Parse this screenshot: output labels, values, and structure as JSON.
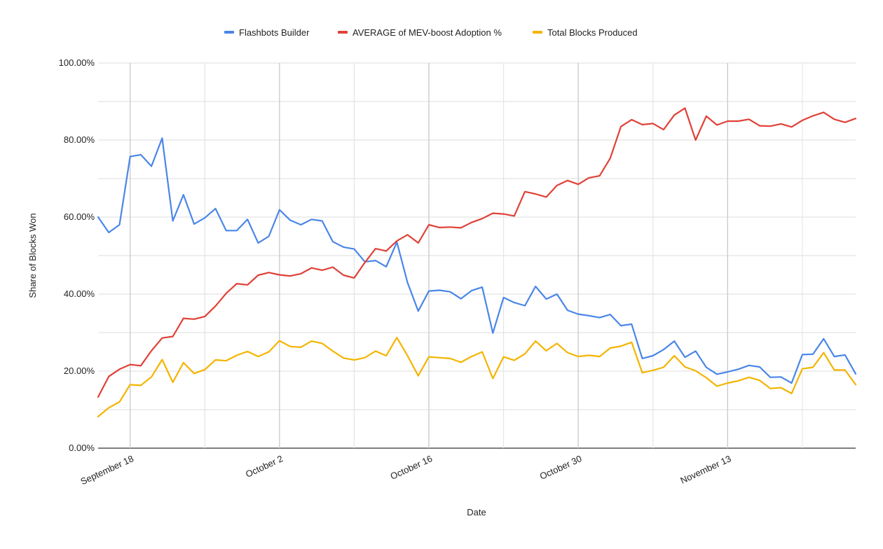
{
  "chart_data": {
    "type": "line",
    "title": "",
    "xlabel": "Date",
    "ylabel": "Share of Blocks Won",
    "ylim": [
      0,
      100
    ],
    "y_ticks": [
      "0.00%",
      "20.00%",
      "40.00%",
      "60.00%",
      "80.00%",
      "100.00%"
    ],
    "x_ticks": [
      {
        "label": "September 18",
        "day": 3
      },
      {
        "label": "October 2",
        "day": 17
      },
      {
        "label": "October 16",
        "day": 31
      },
      {
        "label": "October 30",
        "day": 45
      },
      {
        "label": "November 13",
        "day": 59
      }
    ],
    "x_start": "September 15",
    "x_end": "November 24",
    "grid": true,
    "legend_position": "top",
    "series": [
      {
        "name": "Flashbots Builder",
        "color": "#4a86e8",
        "values": [
          60.0,
          56.0,
          58.0,
          75.7,
          76.2,
          73.2,
          80.5,
          59.0,
          65.8,
          58.2,
          59.8,
          62.2,
          56.5,
          56.5,
          59.4,
          53.3,
          55.0,
          61.9,
          59.2,
          58.0,
          59.4,
          59.0,
          53.6,
          52.2,
          51.7,
          48.4,
          48.7,
          47.1,
          53.5,
          43.0,
          35.6,
          40.8,
          41.0,
          40.6,
          38.8,
          40.9,
          41.8,
          29.9,
          39.1,
          37.8,
          37.0,
          42.0,
          38.7,
          40.0,
          35.8,
          34.8,
          34.4,
          33.9,
          34.7,
          31.8,
          32.2,
          23.3,
          24.0,
          25.6,
          27.8,
          23.6,
          25.2,
          21.0,
          19.2,
          19.8,
          20.5,
          21.5,
          21.1,
          18.4,
          18.5,
          16.9,
          24.3,
          24.4,
          28.4,
          23.8,
          24.2,
          19.3
        ]
      },
      {
        "name": "AVERAGE of MEV-boost Adoption %",
        "color": "#e04137",
        "values": [
          13.3,
          18.6,
          20.5,
          21.7,
          21.4,
          25.3,
          28.6,
          29.0,
          33.7,
          33.5,
          34.2,
          36.9,
          40.2,
          42.7,
          42.4,
          44.9,
          45.6,
          45.0,
          44.7,
          45.3,
          46.8,
          46.2,
          47.0,
          44.9,
          44.2,
          48.2,
          51.8,
          51.2,
          53.8,
          55.4,
          53.3,
          58.0,
          57.3,
          57.4,
          57.2,
          58.6,
          59.6,
          61.0,
          60.8,
          60.3,
          66.6,
          66.0,
          65.2,
          68.2,
          69.5,
          68.5,
          70.2,
          70.7,
          75.3,
          83.5,
          85.3,
          84.0,
          84.3,
          82.7,
          86.5,
          88.3,
          80.0,
          86.2,
          83.9,
          84.9,
          84.9,
          85.4,
          83.7,
          83.6,
          84.2,
          83.4,
          85.1,
          86.3,
          87.2,
          85.4,
          84.6,
          85.6
        ]
      },
      {
        "name": "Total Blocks Produced",
        "color": "#f4b400",
        "values": [
          8.2,
          10.5,
          12.0,
          16.5,
          16.3,
          18.5,
          23.0,
          17.1,
          22.2,
          19.4,
          20.4,
          22.9,
          22.7,
          24.1,
          25.1,
          23.8,
          25.0,
          27.9,
          26.4,
          26.2,
          27.8,
          27.2,
          25.2,
          23.4,
          22.9,
          23.5,
          25.2,
          24.0,
          28.7,
          24.0,
          18.8,
          23.7,
          23.5,
          23.3,
          22.3,
          23.8,
          25.0,
          18.1,
          23.7,
          22.8,
          24.5,
          27.8,
          25.3,
          27.2,
          24.8,
          23.8,
          24.1,
          23.8,
          26.0,
          26.5,
          27.5,
          19.6,
          20.2,
          21.0,
          24.0,
          21.1,
          20.1,
          18.3,
          16.1,
          16.9,
          17.5,
          18.4,
          17.6,
          15.5,
          15.7,
          14.2,
          20.6,
          21.0,
          24.8,
          20.3,
          20.3,
          16.5
        ]
      }
    ]
  }
}
